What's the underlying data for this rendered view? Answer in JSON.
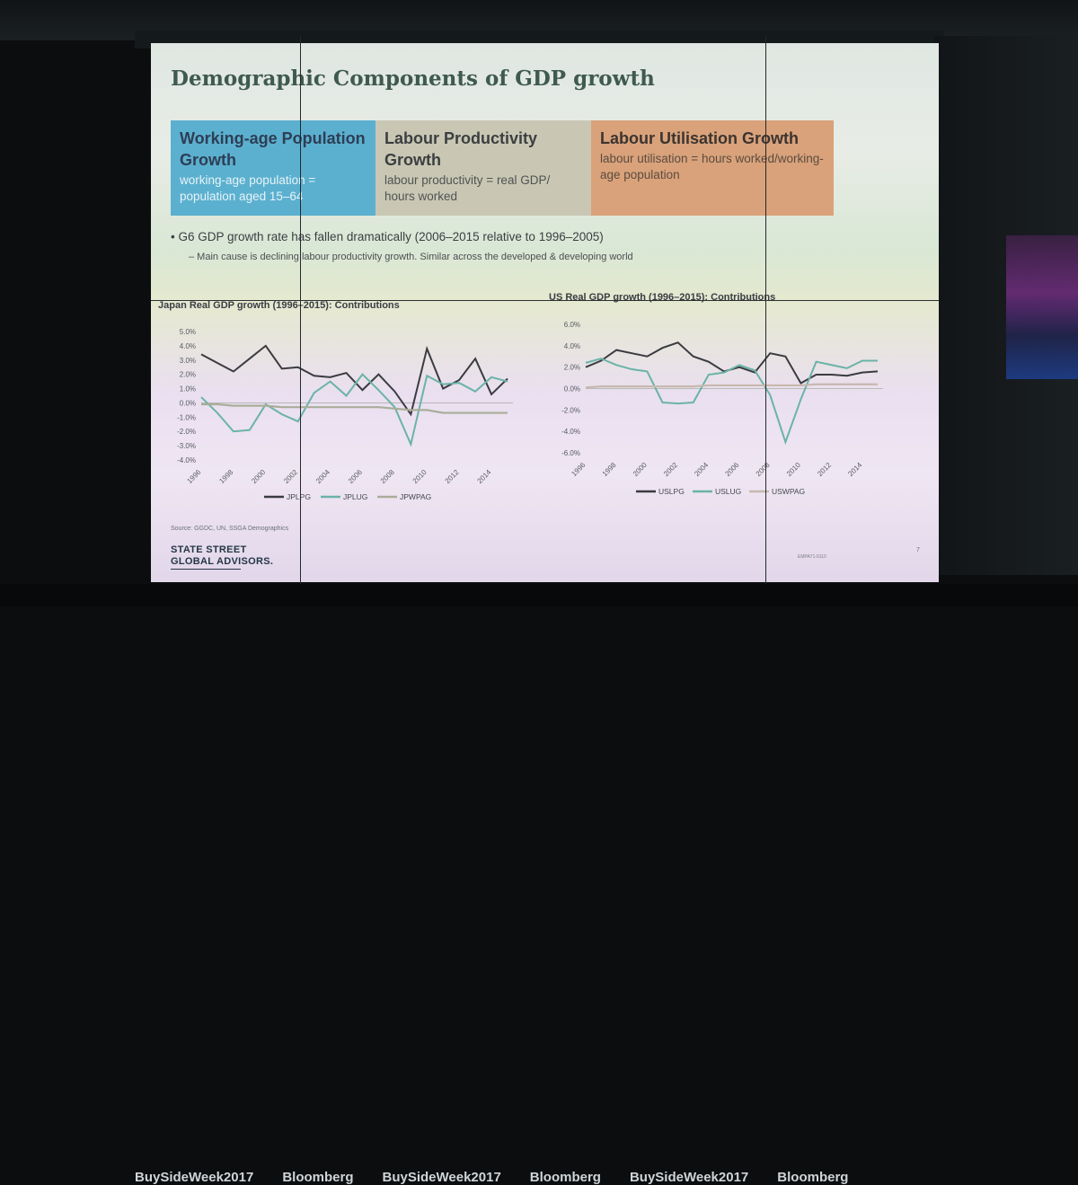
{
  "slide": {
    "title": "Demographic Components of GDP growth",
    "boxes": [
      {
        "heading": "Working-age Population Growth",
        "text": "working-age population = population aged 15–64",
        "color": "#5bb0cf"
      },
      {
        "heading": "Labour Productivity Growth",
        "text": "labour productivity = real GDP/ hours worked",
        "color": "#c9c7b4"
      },
      {
        "heading": "Labour Utilisation Growth",
        "text": "labour utilisation = hours worked/working-age population",
        "color": "#d9a27a"
      }
    ],
    "bullet": "• G6 GDP growth rate has fallen dramatically (2006–2015 relative to 1996–2005)",
    "sub_bullet": "–  Main cause is declining labour productivity growth. Similar across the developed & developing world",
    "source": "Source: GGDC, UN, SSGA Demographics",
    "logo_line1": "STATE STREET",
    "logo_line2": "GLOBAL ADVISORS.",
    "slide_number": "7",
    "ref_code": "EMPA71-0110"
  },
  "banner": {
    "items": [
      "BuySideWeek2017",
      "Bloomberg",
      "BuySideWeek2017",
      "Bloomberg",
      "BuySideWeek2017",
      "Bloomberg"
    ]
  },
  "chart_data": [
    {
      "type": "line",
      "title": "Japan Real GDP growth (1996–2015): Contributions",
      "x": [
        1996,
        1997,
        1998,
        1999,
        2000,
        2001,
        2002,
        2003,
        2004,
        2005,
        2006,
        2007,
        2008,
        2009,
        2010,
        2011,
        2012,
        2013,
        2014,
        2015
      ],
      "x_ticks": [
        "1996",
        "1998",
        "2000",
        "2002",
        "2004",
        "2006",
        "2008",
        "2010",
        "2012",
        "2014"
      ],
      "y_ticks": [
        "5.0%",
        "4.0%",
        "3.0%",
        "2.0%",
        "1.0%",
        "0.0%",
        "-1.0%",
        "-2.0%",
        "-3.0%",
        "-4.0%"
      ],
      "ylim": [
        -4,
        5
      ],
      "series": [
        {
          "name": "JPLPG",
          "color": "#3a3b40",
          "values": [
            3.4,
            2.8,
            2.2,
            3.1,
            4.0,
            2.4,
            2.5,
            1.9,
            1.8,
            2.1,
            0.9,
            2.0,
            0.8,
            -0.8,
            3.8,
            1.0,
            1.6,
            3.1,
            0.6,
            1.7
          ]
        },
        {
          "name": "JPLUG",
          "color": "#6ab3a8",
          "values": [
            0.4,
            -0.7,
            -2.0,
            -1.9,
            -0.1,
            -0.8,
            -1.3,
            0.7,
            1.5,
            0.5,
            2.0,
            0.9,
            -0.3,
            -2.9,
            1.9,
            1.3,
            1.4,
            0.8,
            1.8,
            1.5
          ]
        },
        {
          "name": "JPWPAG",
          "color": "#a9ad98",
          "values": [
            -0.1,
            -0.1,
            -0.2,
            -0.2,
            -0.2,
            -0.3,
            -0.3,
            -0.3,
            -0.3,
            -0.3,
            -0.3,
            -0.3,
            -0.4,
            -0.5,
            -0.5,
            -0.7,
            -0.7,
            -0.7,
            -0.7,
            -0.7
          ]
        }
      ]
    },
    {
      "type": "line",
      "title": "US Real GDP growth (1996–2015): Contributions",
      "x": [
        1996,
        1997,
        1998,
        1999,
        2000,
        2001,
        2002,
        2003,
        2004,
        2005,
        2006,
        2007,
        2008,
        2009,
        2010,
        2011,
        2012,
        2013,
        2014,
        2015
      ],
      "x_ticks": [
        "1996",
        "1998",
        "2000",
        "2002",
        "2004",
        "2006",
        "2008",
        "2010",
        "2012",
        "2014"
      ],
      "y_ticks": [
        "6.0%",
        "4.0%",
        "2.0%",
        "0.0%",
        "-2.0%",
        "-4.0%",
        "-6.0%"
      ],
      "ylim": [
        -6,
        6
      ],
      "series": [
        {
          "name": "USLPG",
          "color": "#3a3b40",
          "values": [
            2.0,
            2.6,
            3.6,
            3.3,
            3.0,
            3.8,
            4.3,
            3.0,
            2.5,
            1.6,
            2.0,
            1.5,
            3.3,
            3.0,
            0.5,
            1.3,
            1.3,
            1.2,
            1.5,
            1.6
          ]
        },
        {
          "name": "USLUG",
          "color": "#6ab3a8",
          "values": [
            2.4,
            2.8,
            2.2,
            1.8,
            1.6,
            -1.3,
            -1.4,
            -1.3,
            1.3,
            1.5,
            2.2,
            1.7,
            -0.6,
            -5.0,
            -1.0,
            2.5,
            2.2,
            1.9,
            2.6,
            2.6
          ]
        },
        {
          "name": "USWPAG",
          "color": "#c9b8ae",
          "values": [
            0.1,
            0.2,
            0.2,
            0.2,
            0.2,
            0.2,
            0.2,
            0.2,
            0.3,
            0.3,
            0.3,
            0.3,
            0.3,
            0.3,
            0.3,
            0.4,
            0.4,
            0.4,
            0.4,
            0.4
          ]
        }
      ]
    }
  ]
}
